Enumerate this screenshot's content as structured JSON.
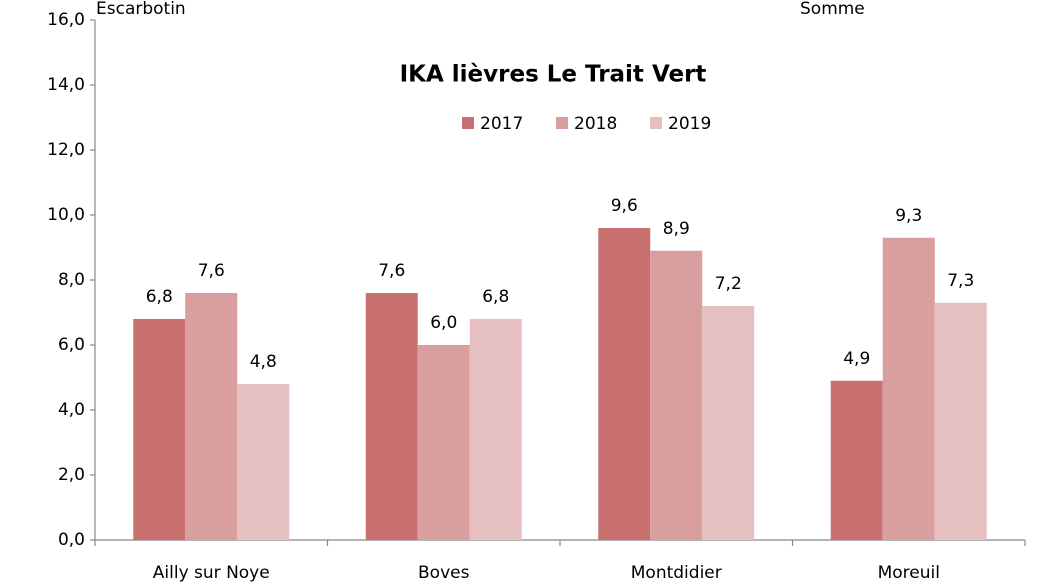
{
  "chart_data": {
    "type": "bar",
    "title": "IKA lièvres Le Trait Vert",
    "annotations": [
      "Escarbotin",
      "Somme"
    ],
    "categories": [
      "Ailly sur Noye",
      "Boves",
      "Montdidier",
      "Moreuil"
    ],
    "series": [
      {
        "name": "2017",
        "color": "#c87070",
        "values": [
          6.8,
          7.6,
          9.6,
          4.9
        ],
        "value_labels": [
          "6,8",
          "7,6",
          "9,6",
          "4,9"
        ]
      },
      {
        "name": "2018",
        "color": "#d99e9e",
        "values": [
          7.6,
          6.0,
          8.9,
          9.3
        ],
        "value_labels": [
          "7,6",
          "6,0",
          "8,9",
          "9,3"
        ]
      },
      {
        "name": "2019",
        "color": "#e6c0c0",
        "values": [
          4.8,
          6.8,
          7.2,
          7.3
        ],
        "value_labels": [
          "4,8",
          "6,8",
          "7,2",
          "7,3"
        ]
      }
    ],
    "ylim": [
      0,
      16
    ],
    "yticks": [
      {
        "value": 0,
        "label": "0,0"
      },
      {
        "value": 2,
        "label": "2,0"
      },
      {
        "value": 4,
        "label": "4,0"
      },
      {
        "value": 6,
        "label": "6,0"
      },
      {
        "value": 8,
        "label": "8,0"
      },
      {
        "value": 10,
        "label": "10,0"
      },
      {
        "value": 12,
        "label": "12,0"
      },
      {
        "value": 14,
        "label": "14,0"
      },
      {
        "value": 16,
        "label": "16,0"
      }
    ],
    "legend": "top",
    "grid": false
  }
}
